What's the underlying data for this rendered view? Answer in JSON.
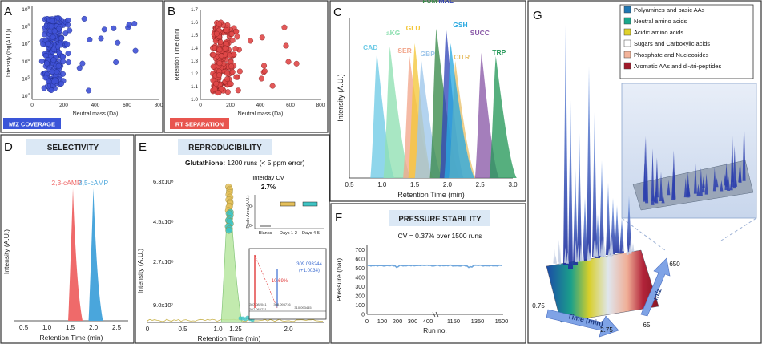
{
  "figure": {
    "panels": {
      "A": {
        "letter": "A",
        "badge": "M/Z COVERAGE"
      },
      "B": {
        "letter": "B",
        "badge": "RT SEPARATION"
      },
      "C": {
        "letter": "C"
      },
      "D": {
        "letter": "D",
        "title": "SELECTIVITY"
      },
      "E": {
        "letter": "E",
        "title": "REPRODUCIBILITY",
        "subtitle_bold": "Glutathione:",
        "subtitle_rest": " 1200 runs (< 5 ppm error)"
      },
      "F": {
        "letter": "F",
        "title": "PRESSURE STABILITY",
        "subtitle": "CV = 0.37% over 1500 runs"
      },
      "G": {
        "letter": "G"
      }
    }
  },
  "chart_data": [
    {
      "id": "A",
      "type": "scatter",
      "xlabel": "Neutral mass (Da)",
      "ylabel": "Intensity (log(A.U.))",
      "xlim": [
        0,
        800
      ],
      "xticks": [
        "0",
        "200",
        "400",
        "600",
        "800"
      ],
      "yticks_exp": [
        "9",
        "8",
        "7",
        "6",
        "5",
        "4"
      ],
      "color": "#3f51d6"
    },
    {
      "id": "B",
      "type": "scatter",
      "xlabel": "Neutral mass (Da)",
      "ylabel": "Retention Time (min)",
      "xlim": [
        0,
        800
      ],
      "ylim": [
        1.0,
        1.7
      ],
      "xticks": [
        "0",
        "200",
        "400",
        "600",
        "800"
      ],
      "yticks": [
        "1.0",
        "1.1",
        "1.2",
        "1.3",
        "1.4",
        "1.5",
        "1.6",
        "1.7"
      ],
      "color": "#e04848"
    },
    {
      "id": "C",
      "type": "area",
      "xlabel": "Retention Time (min)",
      "ylabel": "Intensity (A.U.)",
      "xlim": [
        0.5,
        3.0
      ],
      "xticks": [
        "0.5",
        "1.0",
        "1.5",
        "2.0",
        "2.5",
        "3.0"
      ],
      "peaks": [
        {
          "label": "CAD",
          "rt": 0.92,
          "h": 0.78,
          "color": "#6fcbe6"
        },
        {
          "label": "aKG",
          "rt": 1.12,
          "h": 0.82,
          "color": "#8fe0b2"
        },
        {
          "label": "SER",
          "rt": 1.42,
          "h": 0.76,
          "color": "#f2a68c"
        },
        {
          "label": "GLU",
          "rt": 1.5,
          "h": 0.84,
          "color": "#f4c73a"
        },
        {
          "label": "GBP",
          "rt": 1.6,
          "h": 0.74,
          "color": "#9ec6ea"
        },
        {
          "label": "FUM",
          "rt": 1.83,
          "h": 0.93,
          "color": "#3a8a4a"
        },
        {
          "label": "MAL",
          "rt": 1.98,
          "h": 0.93,
          "color": "#3346b8"
        },
        {
          "label": "CITR",
          "rt": 2.12,
          "h": 0.73,
          "color": "#e8c06a"
        },
        {
          "label": "GSH",
          "rt": 2.05,
          "h": 0.84,
          "color": "#2aa9e0"
        },
        {
          "label": "SUCC",
          "rt": 2.52,
          "h": 0.78,
          "color": "#8a5aa8"
        },
        {
          "label": "TRP",
          "rt": 2.74,
          "h": 0.76,
          "color": "#27995a"
        }
      ]
    },
    {
      "id": "D",
      "type": "area",
      "xlabel": "Retention Time (min)",
      "ylabel": "Intensity (A.U.)",
      "xlim": [
        0.3,
        2.75
      ],
      "xticks": [
        "0.5",
        "1.0",
        "1.5",
        "2.0",
        "2.5"
      ],
      "series": [
        {
          "name": "2,3-cAMP",
          "rt": 1.56,
          "h": 0.86,
          "color": "#ef6a6a"
        },
        {
          "name": "3,5-cAMP",
          "rt": 2.0,
          "h": 0.86,
          "color": "#4aa6dc"
        }
      ]
    },
    {
      "id": "E",
      "type": "line",
      "xlabel": "Retention Time (min)",
      "ylabel": "Intensity (A.U.)",
      "xlim": [
        0,
        2.5
      ],
      "xticks": [
        "0",
        "0.5",
        "1.0",
        "1.25",
        "2.0"
      ],
      "yticks": [
        "9.0x10⁷",
        "2.7x10⁸",
        "4.5x10⁸",
        "6.3x10⁸"
      ],
      "peak_rt": 1.16,
      "inset_cv": {
        "title": "Interday CV",
        "value": "2.7%",
        "ylabel": "Peak Area (A.U.)",
        "xticks": [
          "Blanks",
          "Days 1-2",
          "Days 4-5"
        ],
        "ytick": "10⁶",
        "ytick_low": "10⁴"
      },
      "inset_ms": {
        "main_label": "308.092261",
        "ppm_label": "10.69%",
        "iso_label": "309.093244",
        "iso_delta": "(+1.0034)",
        "low_labels": [
          "307.082041",
          "308.093716",
          "310.093445",
          "307.083721"
        ]
      }
    },
    {
      "id": "F",
      "type": "line",
      "xlabel": "Run no.",
      "ylabel": "Pressure (bar)",
      "xticks": [
        "0",
        "100",
        "200",
        "300",
        "400",
        "1150",
        "1350",
        "1500"
      ],
      "yticks": [
        "0",
        "100",
        "200",
        "300",
        "400",
        "500",
        "600",
        "700"
      ],
      "ylim": [
        0,
        750
      ],
      "level": 530
    },
    {
      "id": "G",
      "type": "heatmap",
      "legend": [
        {
          "label": "Polyamines and basic AAs",
          "color": "#1f77b4"
        },
        {
          "label": "Neutral amino acids",
          "color": "#1aa88c"
        },
        {
          "label": "Acidic amino acids",
          "color": "#e0d22a"
        },
        {
          "label": "Sugars and Carboxylic acids",
          "color": "#ffffff"
        },
        {
          "label": "Phosphate and Nucleosides",
          "color": "#f2b39a"
        },
        {
          "label": "Aromatic AAs and di-/tri-peptides",
          "color": "#a01a2a"
        }
      ],
      "time_label": "Time (min)",
      "mz_label": "m/z",
      "time_min": "0.75",
      "time_max": "2.75",
      "mz_min": "65",
      "mz_max": "650"
    }
  ]
}
